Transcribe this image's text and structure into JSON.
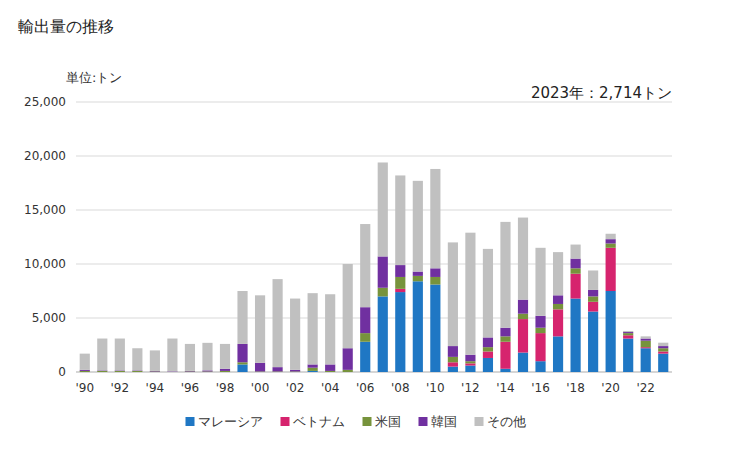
{
  "chart_data": {
    "type": "bar",
    "title": "輸出量の推移",
    "y_label": "単位:トン",
    "annotation": "2023年：2,714トン",
    "stacked": true,
    "grid": true,
    "legend": "bottom",
    "categories": [
      "'90",
      null,
      "'92",
      null,
      "'94",
      null,
      "'96",
      null,
      "'98",
      null,
      "'00",
      null,
      "'02",
      null,
      "'04",
      null,
      "'06",
      null,
      "'08",
      null,
      "'10",
      null,
      "'12",
      null,
      "'14",
      null,
      "'16",
      null,
      "'18",
      null,
      "'20",
      null,
      "'22",
      null
    ],
    "ylim": [
      0,
      25000
    ],
    "yticks": [
      0,
      {
        "value": 5000,
        "label": "5,000"
      },
      {
        "value": 10000,
        "label": "10,000"
      },
      {
        "value": 15000,
        "label": "15,000"
      },
      {
        "value": 20000,
        "label": "20,000"
      },
      {
        "value": 25000,
        "label": "25,000"
      }
    ],
    "series": [
      {
        "name": "マレーシア",
        "color": "#1f77c4",
        "values": [
          0,
          0,
          0,
          0,
          0,
          0,
          0,
          0,
          0,
          700,
          0,
          0,
          0,
          100,
          0,
          0,
          2800,
          7000,
          7400,
          8400,
          8100,
          500,
          600,
          1300,
          300,
          1800,
          1000,
          3300,
          6800,
          5600,
          7500,
          3100,
          2200,
          1700
        ]
      },
      {
        "name": "ベトナム",
        "color": "#d6246e",
        "values": [
          0,
          0,
          0,
          0,
          0,
          0,
          0,
          0,
          0,
          0,
          0,
          0,
          0,
          0,
          0,
          0,
          0,
          0,
          300,
          0,
          0,
          400,
          200,
          600,
          2500,
          3100,
          2600,
          2500,
          2300,
          900,
          4000,
          300,
          100,
          200
        ]
      },
      {
        "name": "米国",
        "color": "#77933c",
        "values": [
          100,
          100,
          100,
          100,
          50,
          0,
          50,
          50,
          100,
          200,
          50,
          50,
          50,
          300,
          100,
          200,
          800,
          800,
          1100,
          500,
          700,
          500,
          200,
          400,
          500,
          500,
          500,
          500,
          500,
          500,
          400,
          200,
          600,
          300
        ]
      },
      {
        "name": "韓国",
        "color": "#7030a0",
        "values": [
          100,
          50,
          50,
          50,
          50,
          50,
          50,
          100,
          200,
          1700,
          800,
          400,
          150,
          300,
          600,
          2000,
          2400,
          2900,
          1100,
          400,
          800,
          1000,
          600,
          900,
          800,
          1300,
          1100,
          800,
          900,
          600,
          400,
          100,
          200,
          200
        ]
      },
      {
        "name": "その他",
        "color": "#c0c0c0",
        "values": [
          1500,
          2950,
          2950,
          2050,
          1900,
          3050,
          2500,
          2550,
          2300,
          4900,
          6250,
          8150,
          6600,
          6600,
          6500,
          7800,
          7700,
          8700,
          8300,
          8400,
          9200,
          9600,
          11300,
          8200,
          9800,
          7600,
          6300,
          4000,
          1300,
          1800,
          500,
          100,
          200,
          314
        ]
      }
    ]
  }
}
